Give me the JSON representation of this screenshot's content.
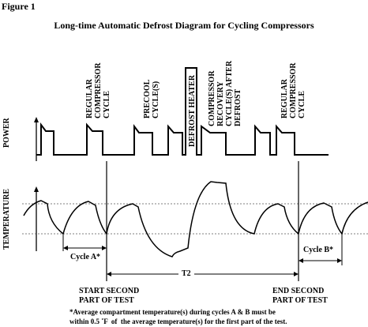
{
  "figure_label": "Figure 1",
  "title": "Long-time Automatic Defrost Diagram for Cycling Compressors",
  "axis_labels": {
    "power": "POWER",
    "temperature": "TEMPERATURE"
  },
  "phases": {
    "regular_1": "REGULAR\nCOMPRESSOR\nCYCLE",
    "precool": "PRECOOL\nCYCLE(S)",
    "defrost": "DEFROST HEATER",
    "recovery": "COMPRESSOR\nRECOVERY\nCYCLE(S) AFTER\nDEFROST",
    "regular_2": "REGULAR\nCOMPRESSOR\nCYCLE"
  },
  "markers": {
    "start": "START SECOND\nPART OF TEST",
    "end": "END SECOND\nPART OF TEST",
    "cycle_a": "Cycle A*",
    "cycle_b": "Cycle B*",
    "t2": "T2"
  },
  "footnote": "*Average compartment temperature(s) during cycles A & B must be\nwithin 0.5 ˚F  of  the average temperature(s) for the first part of the test."
}
